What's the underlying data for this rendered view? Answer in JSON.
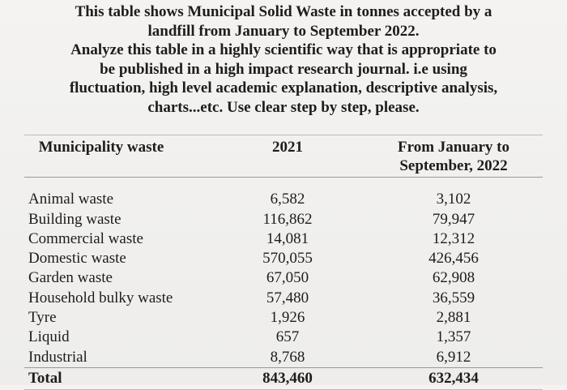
{
  "header": {
    "lines": [
      "This table shows Municipal Solid Waste in tonnes accepted by a",
      "landfill from January to September 2022.",
      "Analyze this table in a highly scientific way that is appropriate to",
      "be published in a high impact research journal. i.e using",
      "fluctuation, high level academic explanation, descriptive analysis,",
      "charts...etc. Use clear step by step, please."
    ]
  },
  "table": {
    "columns": [
      "Municipality waste",
      "2021",
      "From January to September, 2022"
    ],
    "rows": [
      [
        "Animal waste",
        "6,582",
        "3,102"
      ],
      [
        "Building waste",
        "116,862",
        "79,947"
      ],
      [
        "Commercial waste",
        "14,081",
        "12,312"
      ],
      [
        "Domestic waste",
        "570,055",
        "426,456"
      ],
      [
        "Garden waste",
        "67,050",
        "62,908"
      ],
      [
        "Household bulky waste",
        "57,480",
        "36,559"
      ],
      [
        "Tyre",
        "1,926",
        "2,881"
      ],
      [
        "Liquid",
        "657",
        "1,357"
      ],
      [
        "Industrial",
        "8,768",
        "6,912"
      ]
    ],
    "total": [
      "Total",
      "843,460",
      "632,434"
    ]
  }
}
